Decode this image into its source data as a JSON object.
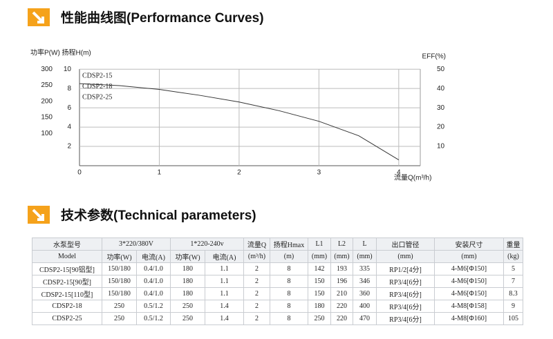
{
  "chart_data": {
    "type": "line",
    "title": "性能曲线图(Performance Curves)",
    "ylabel": "功率P(W) 扬程H(m)",
    "y2label": "EFF(%)",
    "xlabel": "流量Q(m³/h)",
    "legend": [
      "CDSP2-15",
      "CDSP2-18",
      "CDSP2-25"
    ],
    "x": [
      0,
      0.5,
      1,
      1.5,
      2,
      2.5,
      3,
      3.5,
      4
    ],
    "series": [
      {
        "color": "#333333",
        "values": [
          8.5,
          8.3,
          7.9,
          7.3,
          6.6,
          5.7,
          4.6,
          3.1,
          0.6
        ]
      }
    ],
    "xlim": [
      0,
      4.27
    ],
    "xticks": [
      0,
      1,
      2,
      3,
      4
    ],
    "ylim": [
      0,
      10.3
    ],
    "yticks": [
      10,
      8,
      6,
      4,
      2
    ],
    "power_lim": [
      0,
      309
    ],
    "power_ticks": [
      300,
      250,
      200,
      150,
      100
    ],
    "y2lim": [
      0,
      51.5
    ],
    "y2ticks": [
      50,
      40,
      30,
      20,
      10
    ],
    "grid": true
  },
  "section2": {
    "title": "技术参数(Technical parameters)"
  },
  "table": {
    "header_top": [
      {
        "text": "水泵型号",
        "span": 1
      },
      {
        "text": "3*220/380V",
        "span": 2
      },
      {
        "text": "1*220-240v",
        "span": 2
      },
      {
        "text": "流量Q",
        "span": 1
      },
      {
        "text": "扬程Hmax",
        "span": 1
      },
      {
        "text": "L1",
        "span": 1
      },
      {
        "text": "L2",
        "span": 1
      },
      {
        "text": "L",
        "span": 1
      },
      {
        "text": "出口管径",
        "span": 1
      },
      {
        "text": "安装尺寸",
        "span": 1
      },
      {
        "text": "重量",
        "span": 1
      }
    ],
    "header_sub": [
      "Model",
      "功率(W)",
      "电流(A)",
      "功率(W)",
      "电流(A)",
      "(m³/h)",
      "(m)",
      "(mm)",
      "(mm)",
      "(mm)",
      "(mm)",
      "(mm)",
      "(kg)"
    ],
    "rows": [
      [
        "CDSP2-15[90铝型]",
        "150/180",
        "0.4/1.0",
        "180",
        "1.1",
        "2",
        "8",
        "142",
        "193",
        "335",
        "RP1/2[4分]",
        "4-M6[Φ150]",
        "5"
      ],
      [
        "CDSP2-15[90型]",
        "150/180",
        "0.4/1.0",
        "180",
        "1.1",
        "2",
        "8",
        "150",
        "196",
        "346",
        "RP3/4[6分]",
        "4-M6[Φ150]",
        "7"
      ],
      [
        "CDSP2-15[110型]",
        "150/180",
        "0.4/1.0",
        "180",
        "1.1",
        "2",
        "8",
        "150",
        "210",
        "360",
        "RP3/4[6分]",
        "4-M6[Φ150]",
        "8.3"
      ],
      [
        "CDSP2-18",
        "250",
        "0.5/1.2",
        "250",
        "1.4",
        "2",
        "8",
        "180",
        "220",
        "400",
        "RP3/4[6分]",
        "4-M8[Φ158]",
        "9"
      ],
      [
        "CDSP2-25",
        "250",
        "0.5/1.2",
        "250",
        "1.4",
        "2",
        "8",
        "250",
        "220",
        "470",
        "RP3/4[6分]",
        "4-M8[Φ160]",
        "105"
      ]
    ]
  }
}
